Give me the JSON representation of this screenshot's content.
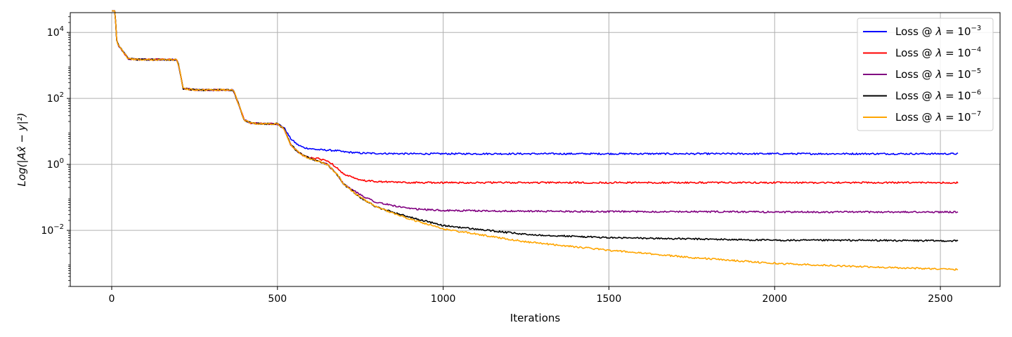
{
  "chart_data": {
    "type": "line",
    "title": "",
    "xlabel": "Iterations",
    "ylabel": "Log(|Ax̂ − y|²)",
    "xlim": [
      -125,
      2680
    ],
    "ylim_log10": [
      -3.7,
      4.6
    ],
    "yscale": "log",
    "x_ticks": [
      0,
      500,
      1000,
      1500,
      2000,
      2500
    ],
    "x_tick_labels": [
      "0",
      "500",
      "1000",
      "1500",
      "2000",
      "2500"
    ],
    "y_ticks_log10": [
      -2,
      0,
      2,
      4
    ],
    "y_tick_labels": [
      {
        "base": "10",
        "exp": "−2"
      },
      {
        "base": "10",
        "exp": "0"
      },
      {
        "base": "10",
        "exp": "2"
      },
      {
        "base": "10",
        "exp": "4"
      }
    ],
    "grid": true,
    "legend_position": "top-right",
    "x": [
      0,
      10,
      15,
      20,
      30,
      40,
      50,
      80,
      195,
      200,
      210,
      215,
      250,
      300,
      365,
      370,
      380,
      400,
      420,
      450,
      500,
      520,
      540,
      560,
      580,
      600,
      620,
      650,
      680,
      700,
      750,
      800,
      900,
      1000,
      1250,
      1500,
      1750,
      2000,
      2250,
      2555
    ],
    "series": [
      {
        "name": "Loss @ λ = 10⁻³",
        "legend_prefix": "Loss @ ",
        "legend_exp": "−3",
        "color": "#0000ff",
        "values": [
          45000,
          45000,
          6000,
          4000,
          3000,
          2200,
          1600,
          1500,
          1500,
          1200,
          400,
          200,
          180,
          180,
          180,
          150,
          80,
          22,
          18,
          17,
          17,
          13,
          6,
          4,
          3.2,
          3.0,
          2.8,
          2.7,
          2.6,
          2.4,
          2.2,
          2.15,
          2.1,
          2.1,
          2.1,
          2.1,
          2.1,
          2.1,
          2.1,
          2.1
        ]
      },
      {
        "name": "Loss @ λ = 10⁻⁴",
        "legend_prefix": "Loss @ ",
        "legend_exp": "−4",
        "color": "#ff0000",
        "values": [
          45000,
          45000,
          6000,
          4000,
          3000,
          2200,
          1600,
          1500,
          1500,
          1200,
          400,
          200,
          180,
          180,
          180,
          150,
          80,
          22,
          18,
          17,
          17,
          12,
          4,
          2.5,
          1.8,
          1.6,
          1.5,
          1.3,
          0.8,
          0.5,
          0.33,
          0.3,
          0.28,
          0.28,
          0.28,
          0.28,
          0.28,
          0.28,
          0.28,
          0.28
        ]
      },
      {
        "name": "Loss @ λ = 10⁻⁵",
        "legend_prefix": "Loss @ ",
        "legend_exp": "−5",
        "color": "#800080",
        "values": [
          45000,
          45000,
          6000,
          4000,
          3000,
          2200,
          1600,
          1500,
          1500,
          1200,
          400,
          200,
          180,
          180,
          180,
          150,
          80,
          22,
          18,
          17,
          17,
          12,
          4,
          2.5,
          1.8,
          1.5,
          1.3,
          1.0,
          0.5,
          0.25,
          0.12,
          0.07,
          0.045,
          0.04,
          0.038,
          0.037,
          0.037,
          0.036,
          0.036,
          0.036
        ]
      },
      {
        "name": "Loss @ λ = 10⁻⁶",
        "legend_prefix": "Loss @ ",
        "legend_exp": "−6",
        "color": "#000000",
        "values": [
          45000,
          45000,
          6000,
          4000,
          3000,
          2200,
          1600,
          1500,
          1500,
          1200,
          400,
          200,
          180,
          180,
          180,
          150,
          80,
          22,
          18,
          17,
          17,
          12,
          4,
          2.5,
          1.8,
          1.5,
          1.3,
          1.0,
          0.5,
          0.25,
          0.1,
          0.05,
          0.025,
          0.014,
          0.0075,
          0.006,
          0.0055,
          0.005,
          0.005,
          0.0048
        ]
      },
      {
        "name": "Loss @ λ = 10⁻⁷",
        "legend_prefix": "Loss @ ",
        "legend_exp": "−7",
        "color": "#ffa500",
        "values": [
          45000,
          45000,
          6000,
          4000,
          3000,
          2200,
          1600,
          1500,
          1500,
          1200,
          400,
          200,
          180,
          180,
          180,
          150,
          80,
          22,
          18,
          17,
          17,
          12,
          4,
          2.5,
          1.8,
          1.5,
          1.3,
          1.0,
          0.5,
          0.25,
          0.1,
          0.05,
          0.022,
          0.011,
          0.0045,
          0.0025,
          0.0015,
          0.001,
          0.0008,
          0.00065
        ]
      }
    ]
  }
}
